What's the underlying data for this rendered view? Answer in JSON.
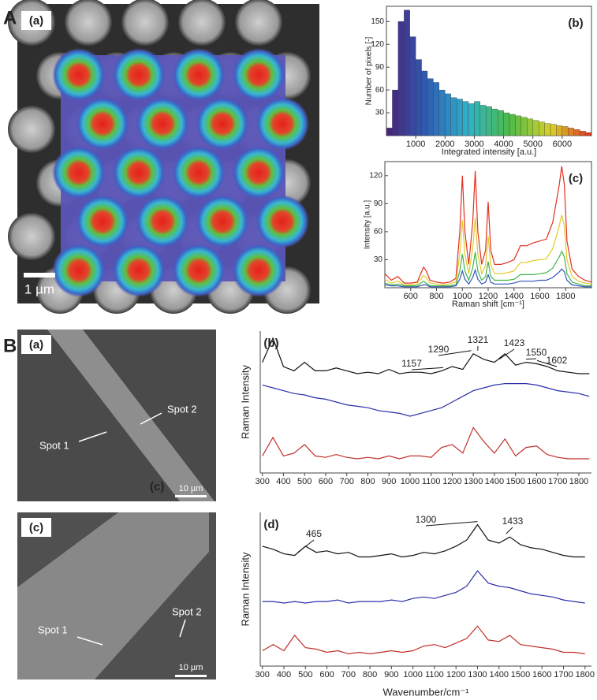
{
  "figure": {
    "panel_labels": [
      "A",
      "B"
    ],
    "images": [
      {
        "label": "(a)",
        "scale_bar": "1 µm"
      },
      {
        "label": "(a)",
        "annotations": [
          "Spot 2",
          "Spot 1",
          "(c)"
        ],
        "scale_bar": "10 µm"
      },
      {
        "label": "(c)",
        "annotations": [
          "Spot 2",
          "Spot 1"
        ],
        "scale_bar": "10 µm"
      }
    ]
  },
  "chart_data": [
    {
      "type": "histogram",
      "panel_label": "(b)",
      "xlabel": "Integrated intensity [a.u.]",
      "ylabel": "Number of pixels [-]",
      "bins": [
        0,
        200,
        400,
        600,
        800,
        1000,
        1200,
        1400,
        1600,
        1800,
        2000,
        2200,
        2400,
        2600,
        2800,
        3000,
        3200,
        3400,
        3600,
        3800,
        4000,
        4200,
        4400,
        4600,
        4800,
        5000,
        5200,
        5400,
        5600,
        5800,
        6000,
        6200,
        6400,
        6600,
        6800,
        7000
      ],
      "counts": [
        10,
        60,
        150,
        165,
        130,
        100,
        85,
        75,
        70,
        60,
        55,
        50,
        48,
        45,
        42,
        45,
        40,
        38,
        35,
        33,
        30,
        28,
        26,
        24,
        22,
        20,
        18,
        16,
        15,
        13,
        12,
        10,
        8,
        6,
        4
      ],
      "colormap": [
        "#4b1f78",
        "#2f5fb3",
        "#2fb2c8",
        "#4dbb47",
        "#d8d12a",
        "#e0311f"
      ],
      "xlim": [
        0,
        7000
      ],
      "ylim": [
        0,
        170
      ],
      "xticks": [
        1000,
        2000,
        3000,
        4000,
        5000,
        6000
      ],
      "yticks": [
        30,
        60,
        90,
        120,
        150
      ]
    },
    {
      "type": "line",
      "panel_label": "(c)",
      "xlabel": "Raman shift [cm⁻¹]",
      "ylabel": "Intensity [a.u.]",
      "x": [
        400,
        450,
        500,
        550,
        600,
        650,
        700,
        720,
        750,
        800,
        850,
        900,
        950,
        980,
        1000,
        1020,
        1050,
        1080,
        1100,
        1120,
        1150,
        1180,
        1200,
        1220,
        1250,
        1300,
        1350,
        1400,
        1450,
        1500,
        1550,
        1600,
        1650,
        1700,
        1750,
        1770,
        1790,
        1810,
        1850,
        1900,
        1950,
        2000
      ],
      "series": [
        {
          "color": "#e0311f",
          "values": [
            15,
            8,
            12,
            5,
            5,
            6,
            22,
            18,
            8,
            6,
            5,
            6,
            10,
            60,
            120,
            60,
            25,
            70,
            125,
            60,
            25,
            40,
            92,
            40,
            25,
            25,
            27,
            30,
            45,
            45,
            48,
            50,
            52,
            70,
            110,
            130,
            110,
            50,
            20,
            12,
            8,
            6
          ]
        },
        {
          "color": "#e3c92a",
          "values": [
            9,
            5,
            7,
            3,
            3,
            4,
            13,
            11,
            5,
            4,
            3,
            4,
            6,
            36,
            72,
            36,
            15,
            42,
            75,
            36,
            15,
            24,
            55,
            24,
            15,
            15,
            16,
            18,
            27,
            27,
            29,
            30,
            31,
            42,
            66,
            78,
            66,
            30,
            12,
            7,
            5,
            4
          ]
        },
        {
          "color": "#3fb548",
          "values": [
            5,
            3,
            4,
            2,
            2,
            2,
            7,
            5,
            2,
            2,
            2,
            2,
            3,
            18,
            36,
            18,
            8,
            21,
            38,
            18,
            8,
            12,
            28,
            12,
            8,
            8,
            8,
            9,
            14,
            14,
            14,
            15,
            16,
            21,
            33,
            39,
            33,
            15,
            6,
            4,
            2,
            2
          ]
        },
        {
          "color": "#3356b8",
          "values": [
            3,
            2,
            2,
            1,
            1,
            1,
            3,
            3,
            1,
            1,
            1,
            1,
            2,
            9,
            18,
            9,
            4,
            11,
            19,
            9,
            4,
            6,
            14,
            6,
            4,
            4,
            4,
            5,
            7,
            7,
            7,
            8,
            8,
            11,
            17,
            20,
            17,
            8,
            3,
            2,
            1,
            1
          ]
        }
      ],
      "xlim": [
        400,
        2000
      ],
      "ylim": [
        0,
        135
      ],
      "xticks": [
        600,
        800,
        1000,
        1200,
        1400,
        1600,
        1800
      ],
      "yticks": [
        30,
        60,
        90,
        120
      ]
    },
    {
      "type": "line",
      "panel_label": "(b)",
      "ylabel": "Raman Intensity",
      "x": [
        300,
        350,
        400,
        450,
        500,
        550,
        600,
        650,
        700,
        750,
        800,
        850,
        900,
        950,
        1000,
        1050,
        1100,
        1150,
        1200,
        1250,
        1300,
        1350,
        1400,
        1450,
        1500,
        1550,
        1600,
        1650,
        1700,
        1750,
        1800,
        1850
      ],
      "series": [
        {
          "color": "#111111",
          "values": [
            78,
            95,
            75,
            72,
            78,
            72,
            72,
            74,
            72,
            70,
            71,
            70,
            73,
            70,
            71,
            71,
            70,
            72,
            75,
            73,
            84,
            80,
            78,
            84,
            76,
            78,
            77,
            75,
            72,
            71,
            70,
            70
          ]
        },
        {
          "color": "#2a2fa8",
          "values": [
            62,
            60,
            58,
            56,
            55,
            53,
            52,
            50,
            48,
            47,
            46,
            44,
            43,
            42,
            40,
            42,
            44,
            46,
            50,
            54,
            58,
            60,
            62,
            63,
            63,
            63,
            62,
            60,
            58,
            57,
            56,
            54
          ]
        },
        {
          "color": "#c0302b",
          "values": [
            12,
            25,
            12,
            14,
            20,
            12,
            11,
            13,
            11,
            10,
            11,
            10,
            12,
            10,
            12,
            12,
            11,
            18,
            20,
            14,
            32,
            22,
            14,
            24,
            12,
            18,
            19,
            13,
            11,
            10,
            10,
            10
          ]
        }
      ],
      "annotations": [
        1157,
        1290,
        1321,
        1423,
        1550,
        1602
      ],
      "xlim": [
        290,
        1860
      ],
      "ylim": [
        0,
        100
      ],
      "xticks": [
        300,
        400,
        500,
        600,
        700,
        800,
        900,
        1000,
        1100,
        1200,
        1300,
        1400,
        1500,
        1600,
        1700,
        1800
      ]
    },
    {
      "type": "line",
      "panel_label": "(d)",
      "xlabel": "Wavenumber/cm⁻¹",
      "ylabel": "Raman Intensity",
      "x": [
        300,
        350,
        400,
        450,
        500,
        550,
        600,
        650,
        700,
        750,
        800,
        850,
        900,
        950,
        1000,
        1050,
        1100,
        1150,
        1200,
        1250,
        1300,
        1350,
        1400,
        1450,
        1500,
        1550,
        1600,
        1650,
        1700,
        1750,
        1800
      ],
      "series": [
        {
          "color": "#111111",
          "values": [
            78,
            76,
            73,
            72,
            78,
            74,
            75,
            73,
            74,
            71,
            71,
            72,
            73,
            71,
            72,
            74,
            73,
            75,
            78,
            82,
            92,
            82,
            80,
            84,
            79,
            77,
            76,
            74,
            72,
            71,
            71
          ]
        },
        {
          "color": "#2a2fa8",
          "values": [
            42,
            42,
            41,
            42,
            41,
            42,
            42,
            43,
            41,
            42,
            42,
            42,
            43,
            42,
            44,
            45,
            44,
            46,
            48,
            52,
            62,
            54,
            52,
            51,
            49,
            47,
            46,
            45,
            43,
            42,
            41
          ]
        },
        {
          "color": "#c0302b",
          "values": [
            10,
            14,
            10,
            20,
            12,
            11,
            9,
            10,
            8,
            9,
            8,
            9,
            10,
            9,
            10,
            13,
            14,
            12,
            15,
            18,
            26,
            17,
            16,
            20,
            14,
            13,
            12,
            11,
            9,
            9,
            8
          ]
        }
      ],
      "annotations": [
        465,
        1300,
        1433
      ],
      "xlim": [
        290,
        1830
      ],
      "ylim": [
        0,
        100
      ],
      "xticks": [
        300,
        400,
        500,
        600,
        700,
        800,
        900,
        1000,
        1100,
        1200,
        1300,
        1400,
        1500,
        1600,
        1700,
        1800
      ]
    }
  ]
}
